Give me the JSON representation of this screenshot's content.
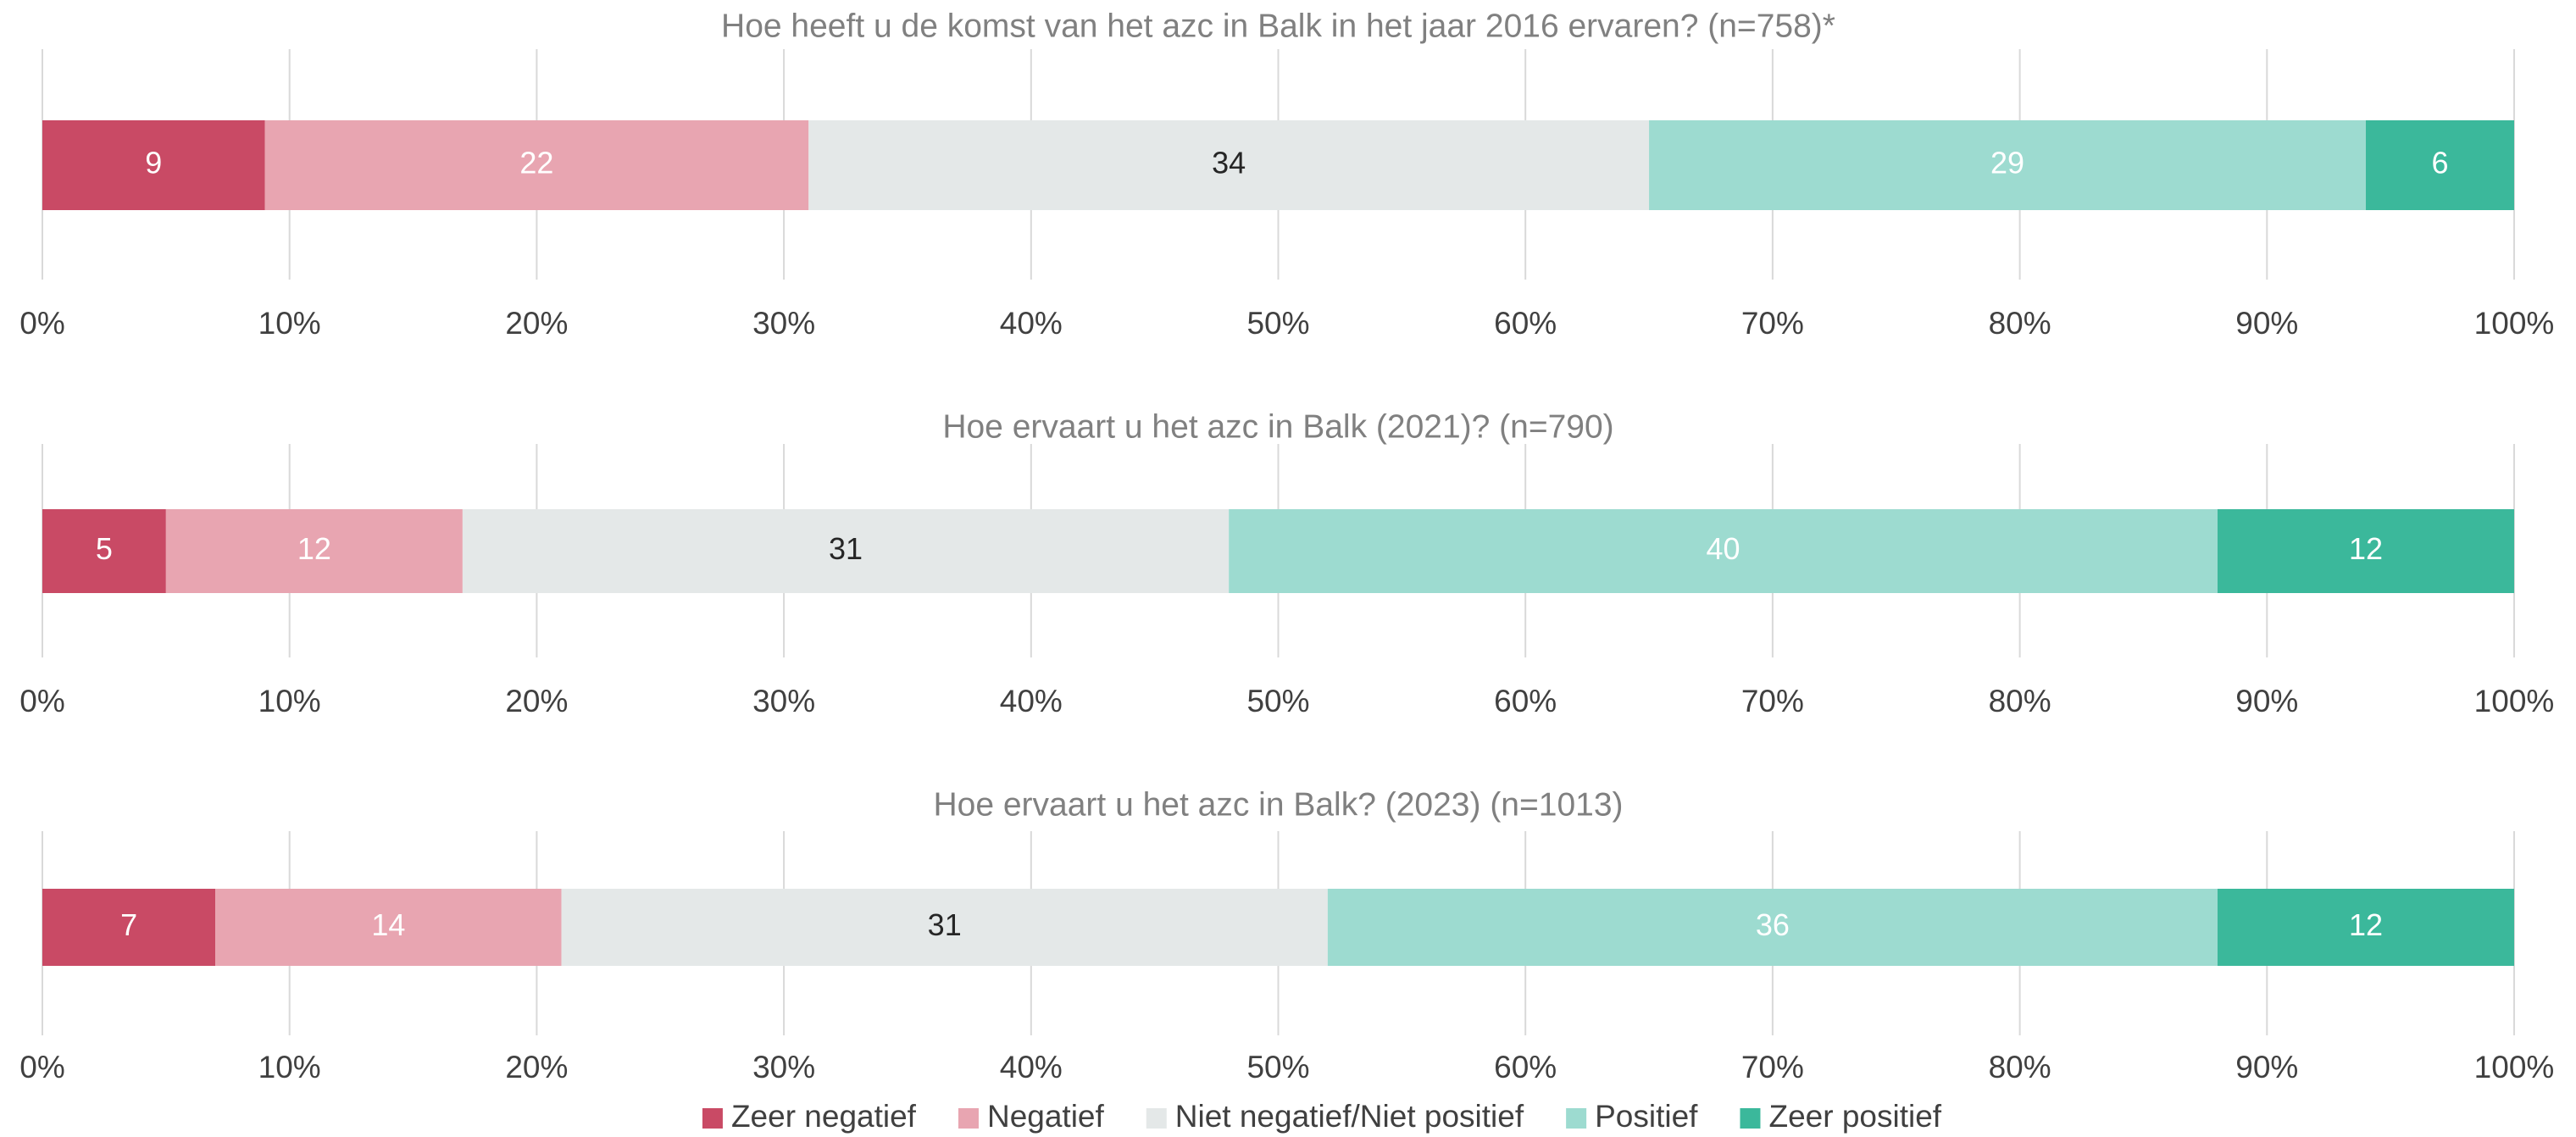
{
  "chart_data": [
    {
      "type": "bar",
      "orientation": "horizontal",
      "stacked": true,
      "title": "Hoe heeft u de komst van het azc in Balk in het jaar 2016 ervaren? (n=758)*",
      "values": [
        9,
        22,
        34,
        29,
        6
      ],
      "xlim": [
        0,
        100
      ],
      "xticks": [
        {
          "value": 0,
          "label": "0%"
        },
        {
          "value": 10,
          "label": "10%"
        },
        {
          "value": 20,
          "label": "20%"
        },
        {
          "value": 30,
          "label": "30%"
        },
        {
          "value": 40,
          "label": "40%"
        },
        {
          "value": 50,
          "label": "50%"
        },
        {
          "value": 60,
          "label": "60%"
        },
        {
          "value": 70,
          "label": "70%"
        },
        {
          "value": 80,
          "label": "80%"
        },
        {
          "value": 90,
          "label": "90%"
        },
        {
          "value": 100,
          "label": "100%"
        }
      ],
      "grid": true
    },
    {
      "type": "bar",
      "orientation": "horizontal",
      "stacked": true,
      "title": "Hoe ervaart u het azc in Balk (2021)? (n=790)",
      "values": [
        5,
        12,
        31,
        40,
        12
      ],
      "xlim": [
        0,
        100
      ],
      "xticks": [
        {
          "value": 0,
          "label": "0%"
        },
        {
          "value": 10,
          "label": "10%"
        },
        {
          "value": 20,
          "label": "20%"
        },
        {
          "value": 30,
          "label": "30%"
        },
        {
          "value": 40,
          "label": "40%"
        },
        {
          "value": 50,
          "label": "50%"
        },
        {
          "value": 60,
          "label": "60%"
        },
        {
          "value": 70,
          "label": "70%"
        },
        {
          "value": 80,
          "label": "80%"
        },
        {
          "value": 90,
          "label": "90%"
        },
        {
          "value": 100,
          "label": "100%"
        }
      ],
      "grid": true
    },
    {
      "type": "bar",
      "orientation": "horizontal",
      "stacked": true,
      "title": "Hoe ervaart u het azc in Balk? (2023) (n=1013)",
      "values": [
        7,
        14,
        31,
        36,
        12
      ],
      "xlim": [
        0,
        100
      ],
      "xticks": [
        {
          "value": 0,
          "label": "0%"
        },
        {
          "value": 10,
          "label": "10%"
        },
        {
          "value": 20,
          "label": "20%"
        },
        {
          "value": 30,
          "label": "30%"
        },
        {
          "value": 40,
          "label": "40%"
        },
        {
          "value": 50,
          "label": "50%"
        },
        {
          "value": 60,
          "label": "60%"
        },
        {
          "value": 70,
          "label": "70%"
        },
        {
          "value": 80,
          "label": "80%"
        },
        {
          "value": 90,
          "label": "90%"
        },
        {
          "value": 100,
          "label": "100%"
        }
      ],
      "grid": true
    }
  ],
  "legend": [
    {
      "name": "Zeer negatief",
      "color": "#c94a65"
    },
    {
      "name": "Negatief",
      "color": "#e8a5b1"
    },
    {
      "name": "Niet negatief/Niet positief",
      "color": "#e4e8e8"
    },
    {
      "name": "Positief",
      "color": "#9ddbd0"
    },
    {
      "name": "Zeer positief",
      "color": "#3bb89b"
    }
  ]
}
